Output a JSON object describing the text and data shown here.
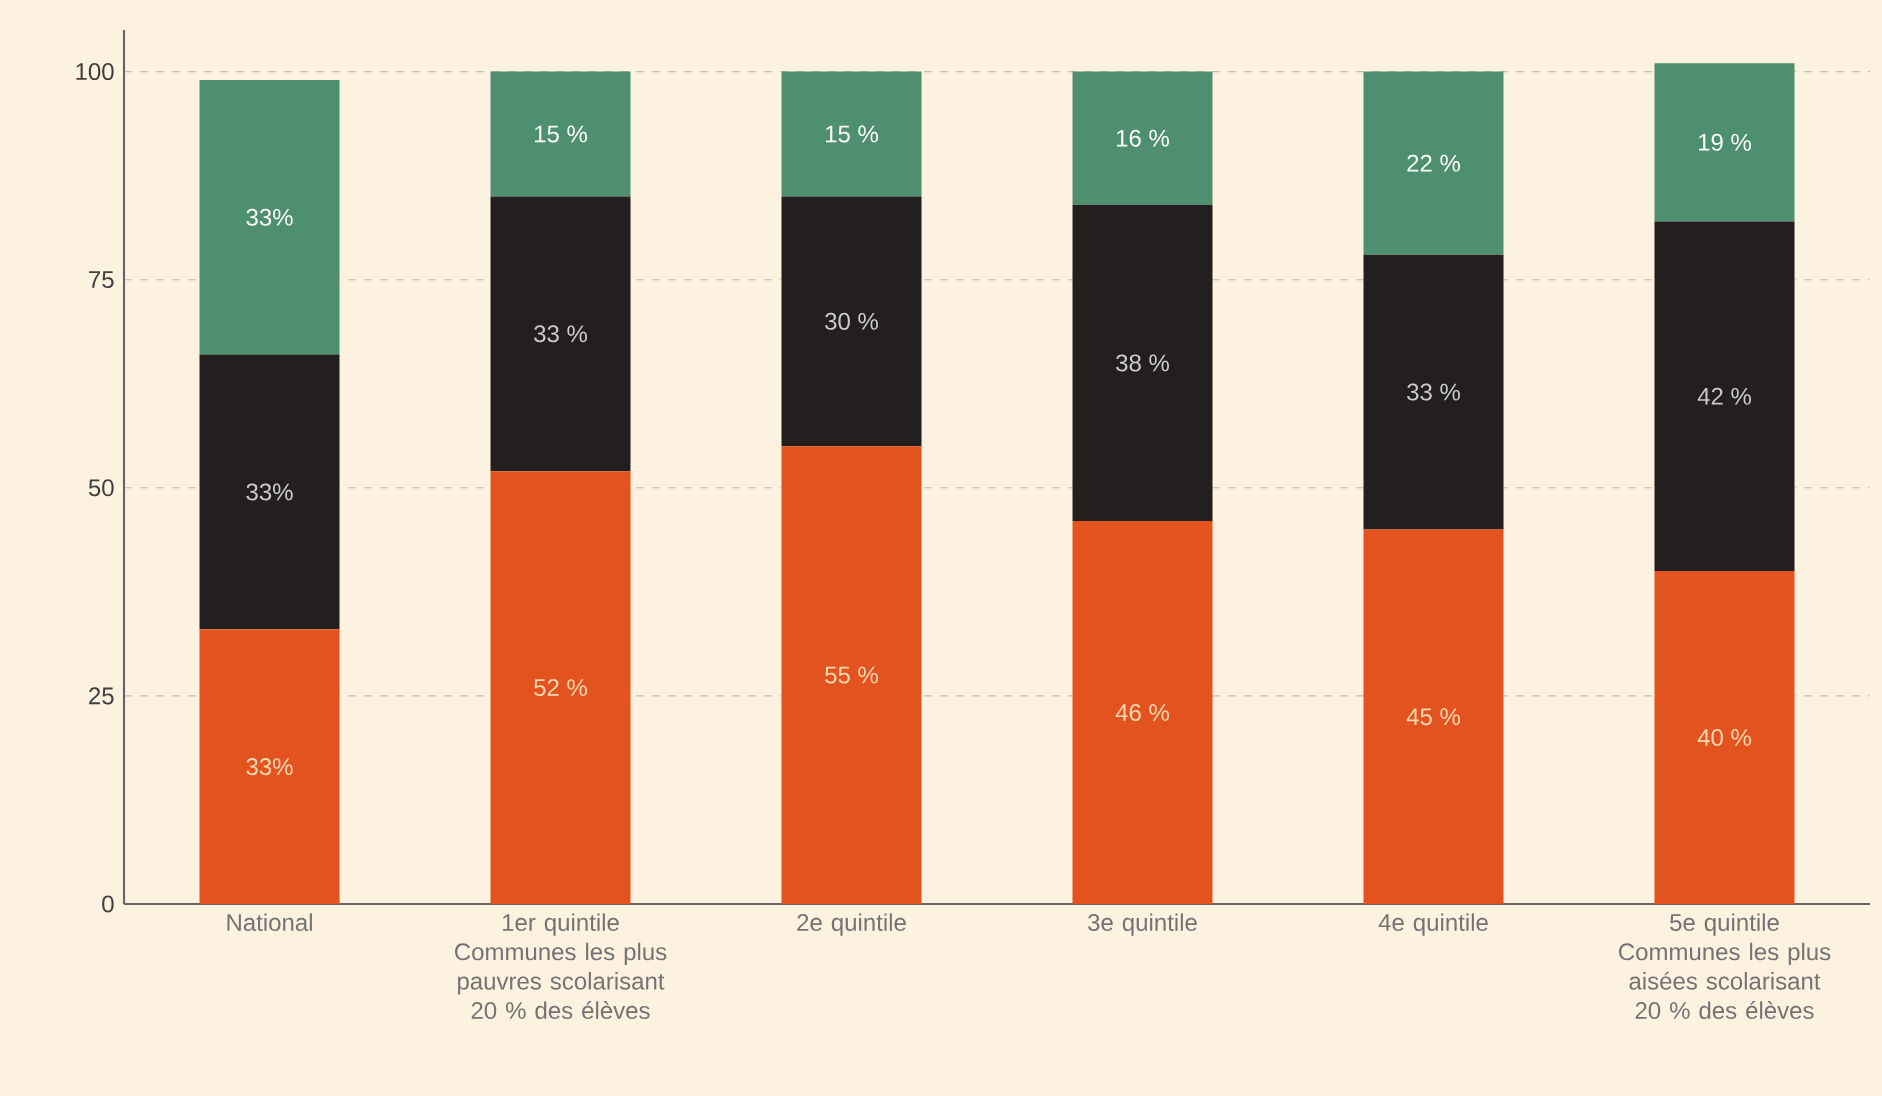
{
  "chart_data": {
    "type": "bar",
    "stacked": true,
    "categories": [
      "National",
      "1er quintile Communes les plus pauvres scolarisant 20 % des élèves",
      "2e quintile",
      "3e quintile",
      "4e quintile",
      "5e quintile Communes les plus aisées scolarisant 20 % des élèves"
    ],
    "series": [
      {
        "color": "#e2531f",
        "values": [
          33,
          52,
          55,
          46,
          45,
          40
        ],
        "value_labels": [
          "33%",
          "52 %",
          "55 %",
          "46 %",
          "45 %",
          "40 %"
        ]
      },
      {
        "color": "#231f1f",
        "values": [
          33,
          33,
          30,
          38,
          33,
          42
        ],
        "value_labels": [
          "33%",
          "33 %",
          "30 %",
          "38 %",
          "33 %",
          "42 %"
        ]
      },
      {
        "color": "#4e8f70",
        "values": [
          33,
          15,
          15,
          16,
          22,
          19
        ],
        "value_labels": [
          "33%",
          "15 %",
          "15 %",
          "16 %",
          "22 %",
          "19 %"
        ]
      }
    ],
    "ylim": [
      0,
      105
    ],
    "yticks": [
      0,
      25,
      50,
      75,
      100
    ],
    "grid": "y"
  }
}
